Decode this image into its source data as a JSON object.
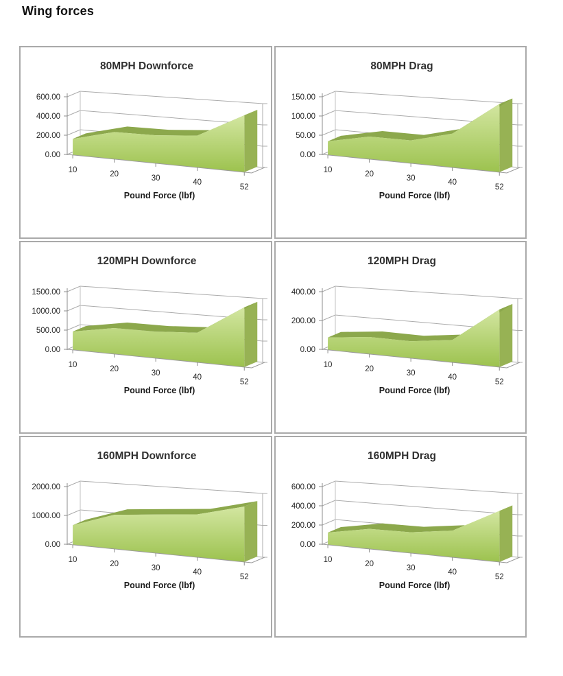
{
  "page": {
    "title": "Wing forces"
  },
  "chart_data": [
    {
      "type": "area",
      "style": "3d",
      "title": "80MPH Downforce",
      "categories": [
        "10",
        "20",
        "30",
        "40",
        "52"
      ],
      "values": [
        165,
        250,
        235,
        245,
        400
      ],
      "xlabel": "Pound Force (lbf)",
      "ylabel": "",
      "y_ticks": [
        "600.00",
        "400.00",
        "200.00",
        "0.00"
      ],
      "ylim": [
        0,
        600
      ],
      "grid": true,
      "legend": false,
      "area_color_top": "#d3e6a1",
      "area_color_bottom": "#9cc24e"
    },
    {
      "type": "area",
      "style": "3d",
      "title": "80MPH Drag",
      "categories": [
        "10",
        "20",
        "30",
        "40",
        "52"
      ],
      "values": [
        35,
        52,
        48,
        65,
        120
      ],
      "xlabel": "Pound Force (lbf)",
      "ylabel": "",
      "y_ticks": [
        "150.00",
        "100.00",
        "50.00",
        "0.00"
      ],
      "ylim": [
        0,
        150
      ],
      "grid": true,
      "legend": false,
      "area_color_top": "#d3e6a1",
      "area_color_bottom": "#9cc24e"
    },
    {
      "type": "area",
      "style": "3d",
      "title": "120MPH Downforce",
      "categories": [
        "10",
        "20",
        "30",
        "40",
        "52"
      ],
      "values": [
        470,
        600,
        560,
        570,
        1050
      ],
      "xlabel": "Pound Force (lbf)",
      "ylabel": "",
      "y_ticks": [
        "1500.00",
        "1000.00",
        "500.00",
        "0.00"
      ],
      "ylim": [
        0,
        1500
      ],
      "grid": true,
      "legend": false,
      "area_color_top": "#d3e6a1",
      "area_color_bottom": "#9cc24e"
    },
    {
      "type": "area",
      "style": "3d",
      "title": "120MPH Drag",
      "categories": [
        "10",
        "20",
        "30",
        "40",
        "52"
      ],
      "values": [
        85,
        105,
        95,
        115,
        270
      ],
      "xlabel": "Pound Force (lbf)",
      "ylabel": "",
      "y_ticks": [
        "400.00",
        "200.00",
        "0.00"
      ],
      "ylim": [
        0,
        400
      ],
      "grid": true,
      "legend": false,
      "area_color_top": "#d3e6a1",
      "area_color_bottom": "#9cc24e"
    },
    {
      "type": "area",
      "style": "3d",
      "title": "160MPH Downforce",
      "categories": [
        "10",
        "20",
        "30",
        "40",
        "52"
      ],
      "values": [
        670,
        1050,
        1080,
        1100,
        1300
      ],
      "xlabel": "Pound Force (lbf)",
      "ylabel": "",
      "y_ticks": [
        "2000.00",
        "1000.00",
        "0.00"
      ],
      "ylim": [
        0,
        2000
      ],
      "grid": true,
      "legend": false,
      "area_color_top": "#d3e6a1",
      "area_color_bottom": "#9cc24e"
    },
    {
      "type": "area",
      "style": "3d",
      "title": "160MPH Drag",
      "categories": [
        "10",
        "20",
        "30",
        "40",
        "52"
      ],
      "values": [
        125,
        185,
        175,
        205,
        360
      ],
      "xlabel": "Pound Force (lbf)",
      "ylabel": "",
      "y_ticks": [
        "600.00",
        "400.00",
        "200.00",
        "0.00"
      ],
      "ylim": [
        0,
        600
      ],
      "grid": true,
      "legend": false,
      "area_color_top": "#d3e6a1",
      "area_color_bottom": "#9cc24e"
    }
  ],
  "colors": {
    "area_ribbon": "#8ca84c",
    "area_side": "#97b254",
    "gridline": "#ababab",
    "axis": "#8c8c8c",
    "panel_border": "#a9a9a9"
  }
}
